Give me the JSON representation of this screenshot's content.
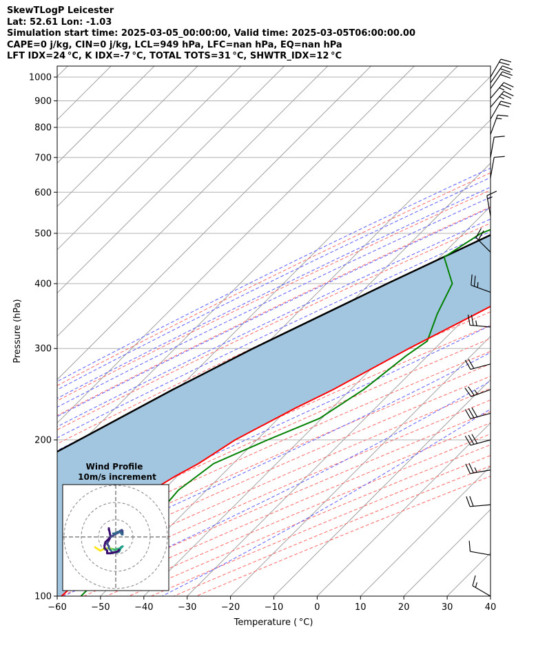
{
  "title_lines": [
    "SkewTLogP Leicester",
    "Lat: 52.61   Lon: -1.03",
    "Simulation start time: 2025-03-05_00:00:00, Valid time: 2025-03-05T06:00:00.00",
    "CAPE=0 j/kg, CIN=0 j/kg, LCL=949 hPa, LFC=nan hPa, EQ=nan hPa",
    "LFT IDX=24 °C, K IDX=-7 °C, TOTAL TOTS=31 °C, SHWTR_IDX=12 °C"
  ],
  "colors": {
    "temperature": "#ff0000",
    "dewpoint": "#008000",
    "parcel": "#000000",
    "shading": "#a3c6e0",
    "dry_adiabat": "#ff6666",
    "moist_adiabat": "#5b5bff",
    "isotherm": "#a0a0a0",
    "mixing_ratio": "#9e54d6",
    "grid": "#b0b0b0"
  },
  "chart_data": [
    {
      "type": "line",
      "subtype": "skew-t-log-p",
      "xlabel": "Temperature ( °C)",
      "ylabel": "Pressure (hPa)",
      "xlim": [
        -60,
        40
      ],
      "ylim": [
        1050,
        100
      ],
      "x_ticks": [
        -60,
        -50,
        -40,
        -30,
        -20,
        -10,
        0,
        10,
        20,
        30,
        40
      ],
      "y_ticks": [
        1000,
        900,
        800,
        700,
        600,
        500,
        400,
        300,
        200,
        100
      ],
      "grid": true,
      "series": [
        {
          "name": "Temperature",
          "pressure": [
            1000,
            975,
            950,
            925,
            900,
            850,
            800,
            750,
            700,
            650,
            600,
            550,
            500,
            470,
            450,
            400,
            350,
            300,
            250,
            230,
            200,
            180,
            170,
            160,
            150,
            140,
            130,
            120,
            110,
            100
          ],
          "values": [
            2,
            7.5,
            10.7,
            12.5,
            12.7,
            12,
            10,
            7.5,
            4.8,
            1.8,
            -2,
            -5.5,
            -9,
            -12.5,
            -15.5,
            -22,
            -28.5,
            -36,
            -44,
            -48.5,
            -55,
            -58,
            -60.5,
            -62.5,
            -62.5,
            -60.5,
            -58.5,
            -58.5,
            -58.5,
            -59
          ]
        },
        {
          "name": "Dewpoint",
          "pressure": [
            1010,
            1000,
            975,
            950,
            930,
            900,
            875,
            850,
            800,
            750,
            700,
            650,
            600,
            550,
            500,
            450,
            400,
            350,
            310,
            290,
            250,
            220,
            200,
            180,
            160,
            150,
            140,
            130,
            120,
            110,
            100
          ],
          "values": [
            -2.5,
            -3,
            -14,
            -15,
            -14,
            -10.5,
            -7.5,
            -6.5,
            -9,
            -14,
            -18,
            -23,
            -28,
            -38,
            -46,
            -49,
            -41,
            -37.5,
            -33.5,
            -35,
            -37,
            -40.5,
            -47.5,
            -54.5,
            -56.5,
            -56,
            -55.5,
            -54.5,
            -54.5,
            -54.5,
            -54.5
          ]
        },
        {
          "name": "Parcel profile",
          "pressure": [
            1000,
            949,
            900,
            850,
            800,
            700,
            600,
            500,
            400,
            300,
            250,
            200,
            150,
            100
          ],
          "values": [
            2,
            -2,
            -4.8,
            -7.8,
            -11.5,
            -20.5,
            -31,
            -43,
            -56,
            -72,
            -81,
            -91,
            -104,
            -122
          ]
        }
      ],
      "wind_barbs": {
        "pressure": [
          100,
          120,
          150,
          175,
          200,
          225,
          250,
          280,
          330,
          385,
          460,
          540,
          640,
          700,
          775,
          830,
          875,
          910,
          950,
          975,
          1000
        ],
        "speed_kt": [
          15,
          10,
          20,
          25,
          30,
          30,
          25,
          20,
          25,
          25,
          20,
          15,
          10,
          10,
          15,
          20,
          25,
          25,
          20,
          20,
          20
        ],
        "direction_deg": [
          300,
          280,
          265,
          260,
          255,
          255,
          250,
          255,
          275,
          290,
          315,
          350,
          10,
          10,
          20,
          30,
          40,
          40,
          35,
          35,
          30
        ]
      }
    },
    {
      "type": "line",
      "subtype": "hodograph",
      "title": "Wind Profile",
      "subtitle": "10m/s increment",
      "ring_step_ms": 10,
      "u_ms": [
        -12,
        -9,
        -7,
        -4,
        -2,
        0,
        -1,
        3,
        4,
        3,
        2,
        0,
        -2,
        -4,
        -4,
        -5,
        -4,
        -3,
        -4,
        -4
      ],
      "v_ms": [
        -6,
        -8,
        -7,
        -6.5,
        -7,
        -7.5,
        -7.5,
        -6.5,
        -5.5,
        -6,
        -8.5,
        -9,
        -9,
        -6.5,
        -5.5,
        -4,
        -2,
        0,
        5,
        4
      ],
      "x": [
        2,
        1,
        -1,
        -3,
        -5,
        -5,
        -6.5,
        -6.5,
        -6,
        -4,
        -3,
        -2,
        -0.5,
        1.5,
        2.5,
        3.5,
        4,
        3.5,
        4,
        3.5,
        4,
        3.5,
        3,
        2,
        1.5,
        0.5,
        -0.5,
        -1,
        -1.5
      ],
      "y": [
        -7.5,
        -8.5,
        -9,
        -9.5,
        -9.5,
        -8,
        -6.5,
        -5,
        -3,
        -1,
        0,
        0.5,
        1.5,
        2.5,
        3.5,
        4,
        3.5,
        3,
        2.5,
        2,
        1.5,
        1.5,
        2.5,
        3,
        3,
        2.5,
        2,
        2,
        2
      ]
    }
  ]
}
